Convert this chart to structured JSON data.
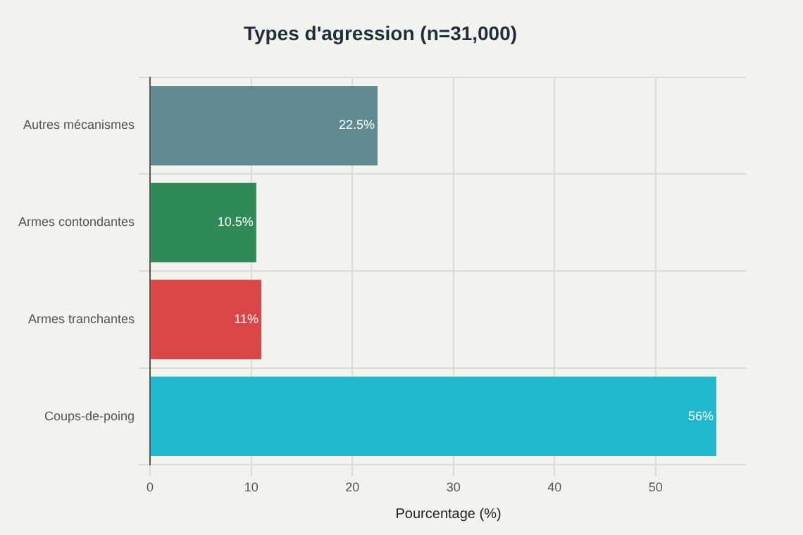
{
  "chart_data": {
    "type": "bar",
    "orientation": "horizontal",
    "title": "Types d'agression (n=31,000)",
    "xlabel": "Pourcentage (%)",
    "categories": [
      "Autres mécanismes",
      "Armes contondantes",
      "Armes tranchantes",
      "Coups-de-poing"
    ],
    "values": [
      22.5,
      10.5,
      11,
      56
    ],
    "colors": [
      "#5f8a8f",
      "#2e8b57",
      "#dc4545",
      "#20b8cc"
    ],
    "value_labels": [
      "22.5%",
      "10.5%",
      "11%",
      "56%"
    ],
    "xlim": [
      0,
      59
    ],
    "xticks": [
      0,
      10,
      20,
      30,
      40,
      50
    ],
    "grid": true,
    "legend": false
  }
}
